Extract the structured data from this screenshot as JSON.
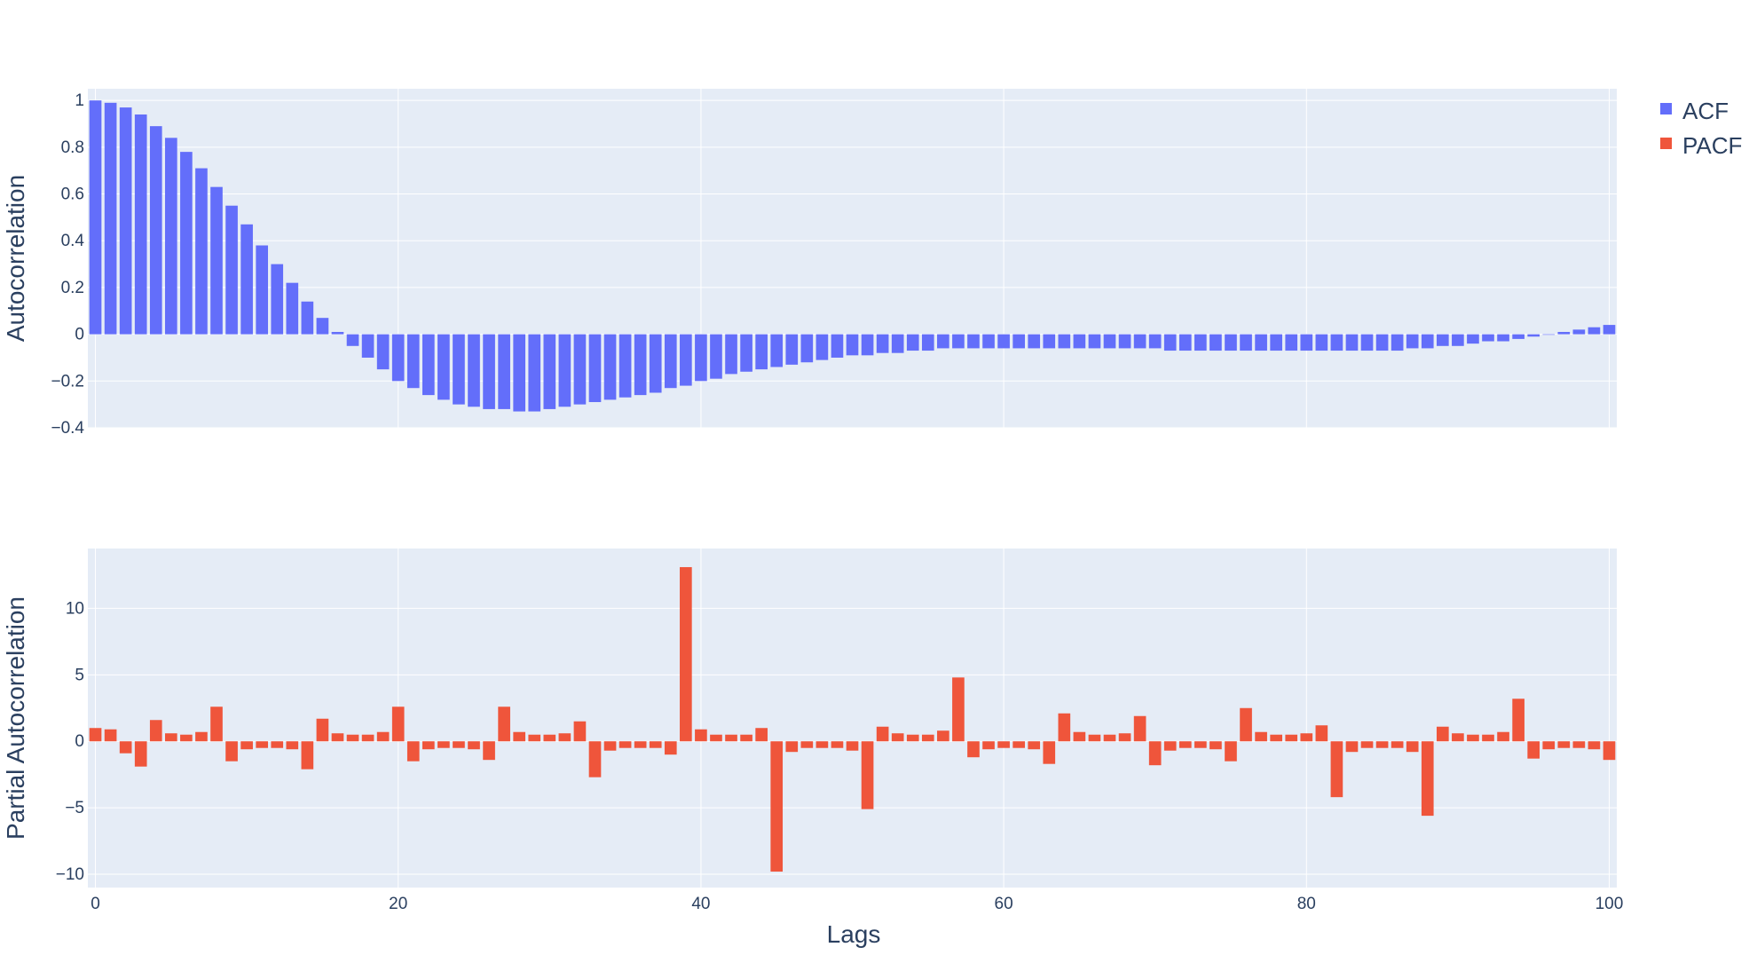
{
  "colors": {
    "acf": "#636efa",
    "pacf": "#ef553b",
    "plot_bg": "#e5ecf6",
    "grid": "#ffffff",
    "text": "#2a3f5f"
  },
  "legend": [
    {
      "name": "ACF",
      "color": "#636efa"
    },
    {
      "name": "PACF",
      "color": "#ef553b"
    }
  ],
  "x_axis": {
    "title": "Lags",
    "ticks": [
      "0",
      "20",
      "40",
      "60",
      "80",
      "100"
    ]
  },
  "chart_data": [
    {
      "type": "bar",
      "name": "ACF",
      "ylabel": "Autocorrelation",
      "xlabel": "",
      "xlim": [
        -0.5,
        100.5
      ],
      "ylim": [
        -0.4,
        1.05
      ],
      "yticks": [
        -0.4,
        -0.2,
        0,
        0.2,
        0.4,
        0.6,
        0.8,
        1
      ],
      "ytick_labels": [
        "−0.4",
        "−0.2",
        "0",
        "0.2",
        "0.4",
        "0.6",
        "0.8",
        "1"
      ],
      "grid": true,
      "x": [
        0,
        1,
        2,
        3,
        4,
        5,
        6,
        7,
        8,
        9,
        10,
        11,
        12,
        13,
        14,
        15,
        16,
        17,
        18,
        19,
        20,
        21,
        22,
        23,
        24,
        25,
        26,
        27,
        28,
        29,
        30,
        31,
        32,
        33,
        34,
        35,
        36,
        37,
        38,
        39,
        40,
        41,
        42,
        43,
        44,
        45,
        46,
        47,
        48,
        49,
        50,
        51,
        52,
        53,
        54,
        55,
        56,
        57,
        58,
        59,
        60,
        61,
        62,
        63,
        64,
        65,
        66,
        67,
        68,
        69,
        70,
        71,
        72,
        73,
        74,
        75,
        76,
        77,
        78,
        79,
        80,
        81,
        82,
        83,
        84,
        85,
        86,
        87,
        88,
        89,
        90,
        91,
        92,
        93,
        94,
        95,
        96,
        97,
        98,
        99,
        100
      ],
      "values": [
        1.0,
        0.99,
        0.97,
        0.94,
        0.89,
        0.84,
        0.78,
        0.71,
        0.63,
        0.55,
        0.47,
        0.38,
        0.3,
        0.22,
        0.14,
        0.07,
        0.01,
        -0.05,
        -0.1,
        -0.15,
        -0.2,
        -0.23,
        -0.26,
        -0.28,
        -0.3,
        -0.31,
        -0.32,
        -0.32,
        -0.33,
        -0.33,
        -0.32,
        -0.31,
        -0.3,
        -0.29,
        -0.28,
        -0.27,
        -0.26,
        -0.25,
        -0.23,
        -0.22,
        -0.2,
        -0.19,
        -0.17,
        -0.16,
        -0.15,
        -0.14,
        -0.13,
        -0.12,
        -0.11,
        -0.1,
        -0.09,
        -0.09,
        -0.08,
        -0.08,
        -0.07,
        -0.07,
        -0.06,
        -0.06,
        -0.06,
        -0.06,
        -0.06,
        -0.06,
        -0.06,
        -0.06,
        -0.06,
        -0.06,
        -0.06,
        -0.06,
        -0.06,
        -0.06,
        -0.06,
        -0.07,
        -0.07,
        -0.07,
        -0.07,
        -0.07,
        -0.07,
        -0.07,
        -0.07,
        -0.07,
        -0.07,
        -0.07,
        -0.07,
        -0.07,
        -0.07,
        -0.07,
        -0.07,
        -0.06,
        -0.06,
        -0.05,
        -0.05,
        -0.04,
        -0.03,
        -0.03,
        -0.02,
        -0.01,
        0.0,
        0.01,
        0.02,
        0.03,
        0.04
      ]
    },
    {
      "type": "bar",
      "name": "PACF",
      "ylabel": "Partial Autocorrelation",
      "xlabel": "Lags",
      "xlim": [
        -0.5,
        100.5
      ],
      "ylim": [
        -11,
        14.5
      ],
      "yticks": [
        -10,
        -5,
        0,
        5,
        10
      ],
      "ytick_labels": [
        "−10",
        "−5",
        "0",
        "5",
        "10"
      ],
      "grid": true,
      "x": [
        0,
        1,
        2,
        3,
        4,
        5,
        6,
        7,
        8,
        9,
        10,
        11,
        12,
        13,
        14,
        15,
        16,
        17,
        18,
        19,
        20,
        21,
        22,
        23,
        24,
        25,
        26,
        27,
        28,
        29,
        30,
        31,
        32,
        33,
        34,
        35,
        36,
        37,
        38,
        39,
        40,
        41,
        42,
        43,
        44,
        45,
        46,
        47,
        48,
        49,
        50,
        51,
        52,
        53,
        54,
        55,
        56,
        57,
        58,
        59,
        60,
        61,
        62,
        63,
        64,
        65,
        66,
        67,
        68,
        69,
        70,
        71,
        72,
        73,
        74,
        75,
        76,
        77,
        78,
        79,
        80,
        81,
        82,
        83,
        84,
        85,
        86,
        87,
        88,
        89,
        90,
        91,
        92,
        93,
        94,
        95,
        96,
        97,
        98,
        99,
        100
      ],
      "values": [
        1.0,
        0.9,
        -0.9,
        -1.9,
        1.6,
        0.6,
        0.5,
        0.7,
        2.6,
        -1.5,
        -0.6,
        -0.5,
        -0.5,
        -0.6,
        -2.1,
        1.7,
        0.6,
        0.5,
        0.5,
        0.7,
        2.6,
        -1.5,
        -0.6,
        -0.5,
        -0.5,
        -0.6,
        -1.4,
        2.6,
        0.7,
        0.5,
        0.5,
        0.6,
        1.5,
        -2.7,
        -0.7,
        -0.5,
        -0.5,
        -0.5,
        -1.0,
        13.1,
        0.9,
        0.5,
        0.5,
        0.5,
        1.0,
        -9.8,
        -0.8,
        -0.5,
        -0.5,
        -0.5,
        -0.7,
        -5.1,
        1.1,
        0.6,
        0.5,
        0.5,
        0.8,
        4.8,
        -1.2,
        -0.6,
        -0.5,
        -0.5,
        -0.6,
        -1.7,
        2.1,
        0.7,
        0.5,
        0.5,
        0.6,
        1.9,
        -1.8,
        -0.7,
        -0.5,
        -0.5,
        -0.6,
        -1.5,
        2.5,
        0.7,
        0.5,
        0.5,
        0.6,
        1.2,
        -4.2,
        -0.8,
        -0.5,
        -0.5,
        -0.5,
        -0.8,
        -5.6,
        1.1,
        0.6,
        0.5,
        0.5,
        0.7,
        3.2,
        -1.3,
        -0.6,
        -0.5,
        -0.5,
        -0.6,
        -1.4
      ]
    }
  ]
}
